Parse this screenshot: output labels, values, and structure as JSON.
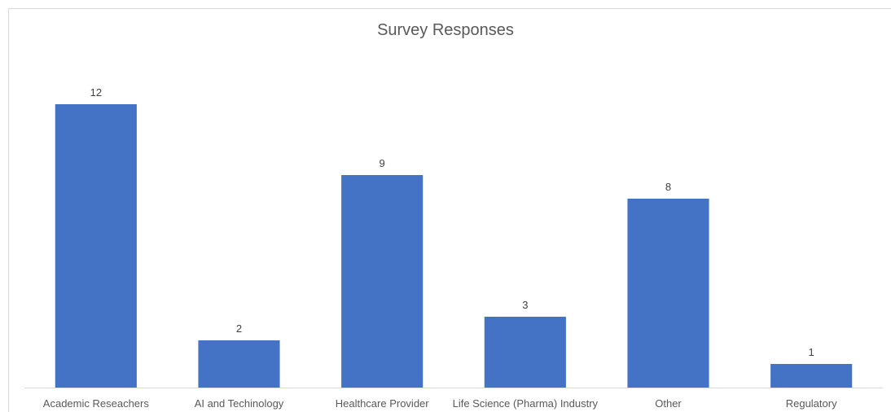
{
  "chart_data": {
    "type": "bar",
    "title": "Survey Responses",
    "categories": [
      "Academic Reseachers",
      "AI and Techinology",
      "Healthcare Provider",
      "Life Science (Pharma) Industry",
      "Other",
      "Regulatory"
    ],
    "values": [
      12,
      2,
      9,
      3,
      8,
      1
    ],
    "ylim": [
      0,
      12
    ],
    "grid": false,
    "legend": "none",
    "bar_color": "#4472C4",
    "data_labels": true
  }
}
